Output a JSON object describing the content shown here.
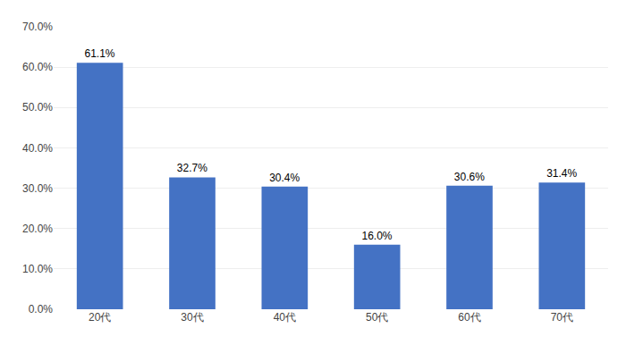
{
  "chart_data": {
    "type": "bar",
    "categories": [
      "20代",
      "30代",
      "40代",
      "50代",
      "60代",
      "70代"
    ],
    "values": [
      61.1,
      32.7,
      30.4,
      16.0,
      30.6,
      31.4
    ],
    "value_labels": [
      "61.1%",
      "32.7%",
      "30.4%",
      "16.0%",
      "30.6%",
      "31.4%"
    ],
    "color": "#4472C4",
    "ylim": [
      0,
      70
    ],
    "yticks": [
      {
        "value": 0,
        "label": "0.0%"
      },
      {
        "value": 10,
        "label": "10.0%"
      },
      {
        "value": 20,
        "label": "20.0%"
      },
      {
        "value": 30,
        "label": "30.0%"
      },
      {
        "value": 40,
        "label": "40.0%"
      },
      {
        "value": 50,
        "label": "50.0%"
      },
      {
        "value": 60,
        "label": "60.0%"
      },
      {
        "value": 70,
        "label": "70.0%"
      }
    ],
    "grid": true,
    "data_labels": true
  }
}
